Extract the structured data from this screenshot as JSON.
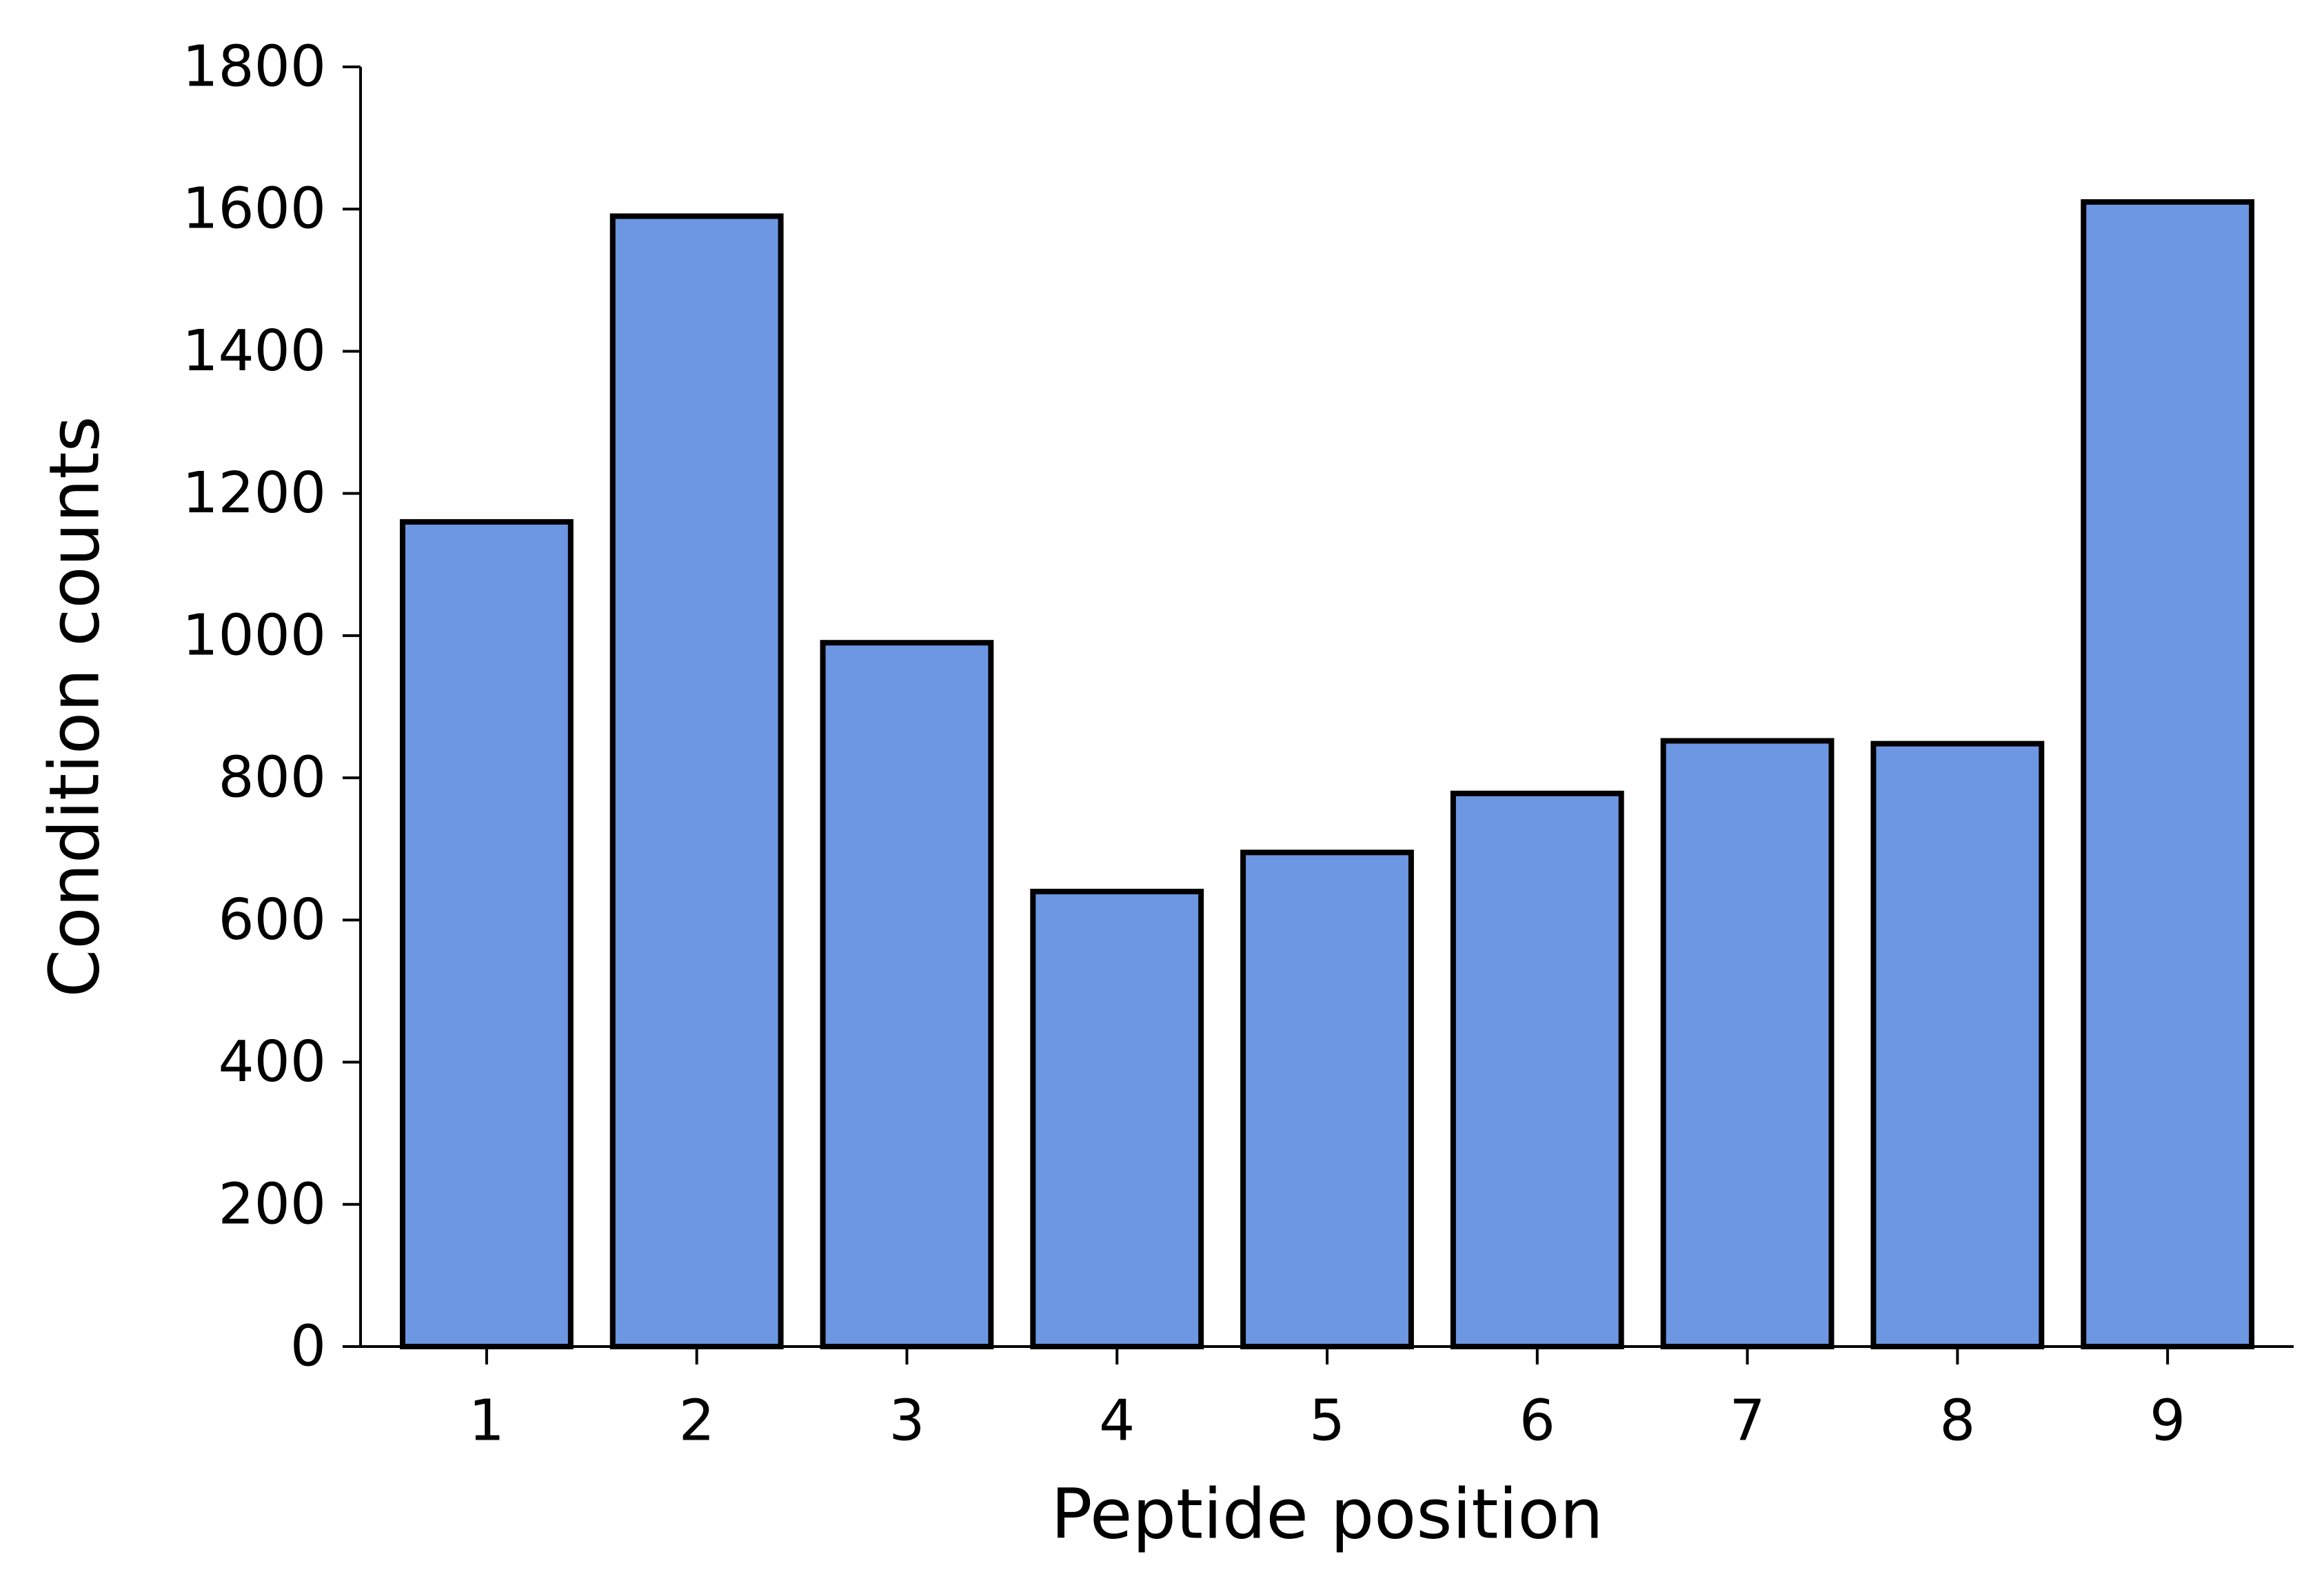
{
  "chart_data": {
    "type": "bar",
    "title": "",
    "xlabel": "Peptide position",
    "ylabel": "Condition counts",
    "categories": [
      "1",
      "2",
      "3",
      "4",
      "5",
      "6",
      "7",
      "8",
      "9"
    ],
    "values": [
      1160,
      1590,
      990,
      640,
      695,
      778,
      852,
      848,
      1610
    ],
    "ylim": [
      0,
      1800
    ],
    "yticks": [
      0,
      200,
      400,
      600,
      800,
      1000,
      1200,
      1400,
      1600,
      1800
    ],
    "grid": false,
    "legend": "none",
    "colors": {
      "bar_fill": "#6d97e2",
      "bar_edge": "#000000",
      "axis": "#000000",
      "text": "#000000"
    }
  }
}
